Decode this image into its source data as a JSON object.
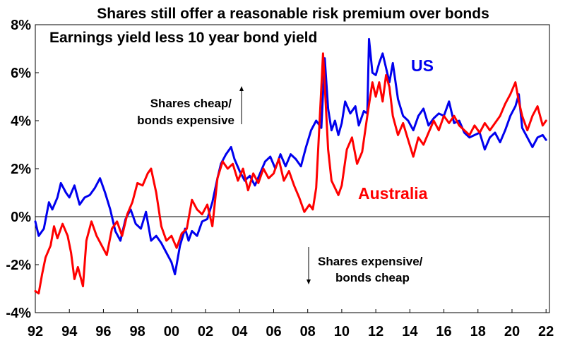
{
  "chart_data": {
    "type": "line",
    "title": "Shares still offer a reasonable risk premium over bonds",
    "subtitle": "Earnings yield less 10 year bond yield",
    "xlabel": "",
    "ylabel": "",
    "xlim": [
      1992,
      2022.2
    ],
    "ylim": [
      -4,
      8
    ],
    "x_ticks": [
      1992,
      1994,
      1996,
      1998,
      2000,
      2002,
      2004,
      2006,
      2008,
      2010,
      2012,
      2014,
      2016,
      2018,
      2020,
      2022
    ],
    "x_tick_labels": [
      "92",
      "94",
      "96",
      "98",
      "00",
      "02",
      "04",
      "06",
      "08",
      "10",
      "12",
      "14",
      "16",
      "18",
      "20",
      "22"
    ],
    "y_ticks": [
      -4,
      -2,
      0,
      2,
      4,
      6,
      8
    ],
    "y_tick_labels": [
      "-4%",
      "-2%",
      "0%",
      "2%",
      "4%",
      "6%",
      "8%"
    ],
    "grid": false,
    "annotations": {
      "up_line1": "Shares cheap/",
      "up_line2": "bonds expensive",
      "down_line1": "Shares expensive/",
      "down_line2": "bonds cheap"
    },
    "series": [
      {
        "name": "US",
        "color": "#0000ee",
        "x": [
          1992.0,
          1992.2,
          1992.5,
          1992.8,
          1993.0,
          1993.3,
          1993.5,
          1993.8,
          1994.0,
          1994.3,
          1994.6,
          1994.9,
          1995.2,
          1995.5,
          1995.8,
          1996.1,
          1996.4,
          1996.7,
          1997.0,
          1997.3,
          1997.6,
          1997.9,
          1998.2,
          1998.5,
          1998.8,
          1999.1,
          1999.4,
          1999.7,
          2000.0,
          2000.2,
          2000.5,
          2000.8,
          2001.0,
          2001.2,
          2001.5,
          2001.8,
          2002.1,
          2002.4,
          2002.7,
          2002.9,
          2003.2,
          2003.5,
          2003.7,
          2004.0,
          2004.3,
          2004.6,
          2004.9,
          2005.2,
          2005.5,
          2005.8,
          2006.1,
          2006.4,
          2006.7,
          2007.0,
          2007.3,
          2007.6,
          2007.9,
          2008.2,
          2008.5,
          2008.8,
          2009.0,
          2009.2,
          2009.4,
          2009.6,
          2009.8,
          2010.0,
          2010.2,
          2010.5,
          2010.8,
          2011.0,
          2011.3,
          2011.5,
          2011.6,
          2011.8,
          2012.0,
          2012.2,
          2012.4,
          2012.6,
          2012.8,
          2013.0,
          2013.3,
          2013.6,
          2013.9,
          2014.2,
          2014.5,
          2014.8,
          2015.1,
          2015.4,
          2015.7,
          2016.0,
          2016.3,
          2016.6,
          2016.9,
          2017.2,
          2017.5,
          2017.8,
          2018.1,
          2018.4,
          2018.7,
          2019.0,
          2019.3,
          2019.6,
          2019.9,
          2020.2,
          2020.4,
          2020.6,
          2020.9,
          2021.2,
          2021.5,
          2021.8,
          2022.0
        ],
        "values": [
          -0.2,
          -0.8,
          -0.5,
          0.6,
          0.3,
          0.8,
          1.4,
          1.0,
          0.8,
          1.3,
          0.5,
          0.8,
          0.9,
          1.2,
          1.6,
          1.0,
          0.3,
          -0.6,
          -1.0,
          -0.1,
          0.3,
          -0.3,
          -0.5,
          0.2,
          -1.0,
          -0.8,
          -1.1,
          -1.5,
          -1.9,
          -2.4,
          -1.2,
          -0.5,
          -1.0,
          -0.6,
          -0.8,
          -0.2,
          -0.1,
          0.6,
          1.6,
          2.2,
          2.6,
          2.9,
          2.4,
          1.9,
          1.5,
          1.7,
          1.3,
          1.8,
          2.3,
          2.5,
          2.0,
          2.6,
          2.1,
          2.6,
          2.4,
          2.1,
          2.9,
          3.6,
          4.0,
          3.7,
          6.6,
          4.5,
          3.6,
          4.0,
          3.4,
          3.9,
          4.8,
          4.3,
          4.6,
          3.8,
          4.4,
          4.3,
          7.4,
          6.0,
          5.9,
          6.4,
          6.8,
          6.2,
          5.6,
          6.4,
          4.9,
          4.2,
          4.0,
          3.6,
          4.2,
          4.5,
          3.8,
          4.1,
          4.3,
          4.2,
          4.8,
          3.9,
          4.0,
          3.5,
          3.3,
          3.4,
          3.5,
          2.8,
          3.3,
          3.5,
          3.1,
          3.6,
          4.2,
          4.6,
          5.1,
          3.7,
          3.3,
          2.9,
          3.3,
          3.4,
          3.2
        ]
      },
      {
        "name": "Australia",
        "color": "#ff0000",
        "x": [
          1992.0,
          1992.2,
          1992.4,
          1992.6,
          1992.9,
          1993.1,
          1993.3,
          1993.6,
          1993.9,
          1994.1,
          1994.3,
          1994.5,
          1994.8,
          1995.0,
          1995.3,
          1995.6,
          1995.9,
          1996.2,
          1996.5,
          1996.8,
          1997.1,
          1997.4,
          1997.7,
          1998.0,
          1998.3,
          1998.6,
          1998.8,
          1999.1,
          1999.4,
          1999.7,
          2000.0,
          2000.3,
          2000.6,
          2000.9,
          2001.2,
          2001.5,
          2001.8,
          2002.1,
          2002.4,
          2002.7,
          2003.0,
          2003.3,
          2003.6,
          2003.9,
          2004.2,
          2004.5,
          2004.8,
          2005.1,
          2005.4,
          2005.7,
          2006.0,
          2006.3,
          2006.6,
          2006.9,
          2007.2,
          2007.5,
          2007.8,
          2008.1,
          2008.3,
          2008.5,
          2008.7,
          2008.9,
          2009.0,
          2009.2,
          2009.4,
          2009.6,
          2009.8,
          2010.0,
          2010.3,
          2010.6,
          2010.9,
          2011.2,
          2011.5,
          2011.8,
          2012.0,
          2012.2,
          2012.4,
          2012.6,
          2012.8,
          2013.0,
          2013.3,
          2013.6,
          2013.9,
          2014.2,
          2014.5,
          2014.8,
          2015.1,
          2015.4,
          2015.7,
          2016.0,
          2016.3,
          2016.6,
          2016.9,
          2017.2,
          2017.5,
          2017.8,
          2018.1,
          2018.4,
          2018.7,
          2019.0,
          2019.3,
          2019.6,
          2019.9,
          2020.2,
          2020.4,
          2020.6,
          2020.9,
          2021.2,
          2021.5,
          2021.8,
          2022.0
        ],
        "values": [
          -3.1,
          -3.2,
          -2.4,
          -1.7,
          -1.2,
          -0.4,
          -0.9,
          -0.3,
          -0.8,
          -1.5,
          -2.6,
          -2.1,
          -2.9,
          -1.0,
          -0.2,
          -0.8,
          -1.2,
          -1.6,
          -0.5,
          -0.2,
          -0.8,
          0.1,
          0.6,
          1.4,
          1.3,
          1.8,
          2.0,
          1.0,
          -0.4,
          -1.0,
          -0.8,
          -1.3,
          -0.7,
          -0.5,
          0.7,
          0.3,
          0.1,
          0.5,
          -0.4,
          1.6,
          2.3,
          2.0,
          2.2,
          1.5,
          2.0,
          1.1,
          1.8,
          1.4,
          2.0,
          1.6,
          1.8,
          2.4,
          1.5,
          1.9,
          1.3,
          0.8,
          0.2,
          0.5,
          0.3,
          1.2,
          4.0,
          6.8,
          5.5,
          2.8,
          1.5,
          1.2,
          0.9,
          1.3,
          2.8,
          3.3,
          2.2,
          2.7,
          4.2,
          5.6,
          5.0,
          5.6,
          4.8,
          5.9,
          5.4,
          4.2,
          3.4,
          3.9,
          3.2,
          2.5,
          3.3,
          3.0,
          3.5,
          4.0,
          3.6,
          4.2,
          3.9,
          4.2,
          3.8,
          3.6,
          3.4,
          3.8,
          3.5,
          3.9,
          3.6,
          3.9,
          4.2,
          4.7,
          5.1,
          5.6,
          4.8,
          4.2,
          3.6,
          4.2,
          4.6,
          3.8,
          4.0
        ]
      }
    ]
  }
}
